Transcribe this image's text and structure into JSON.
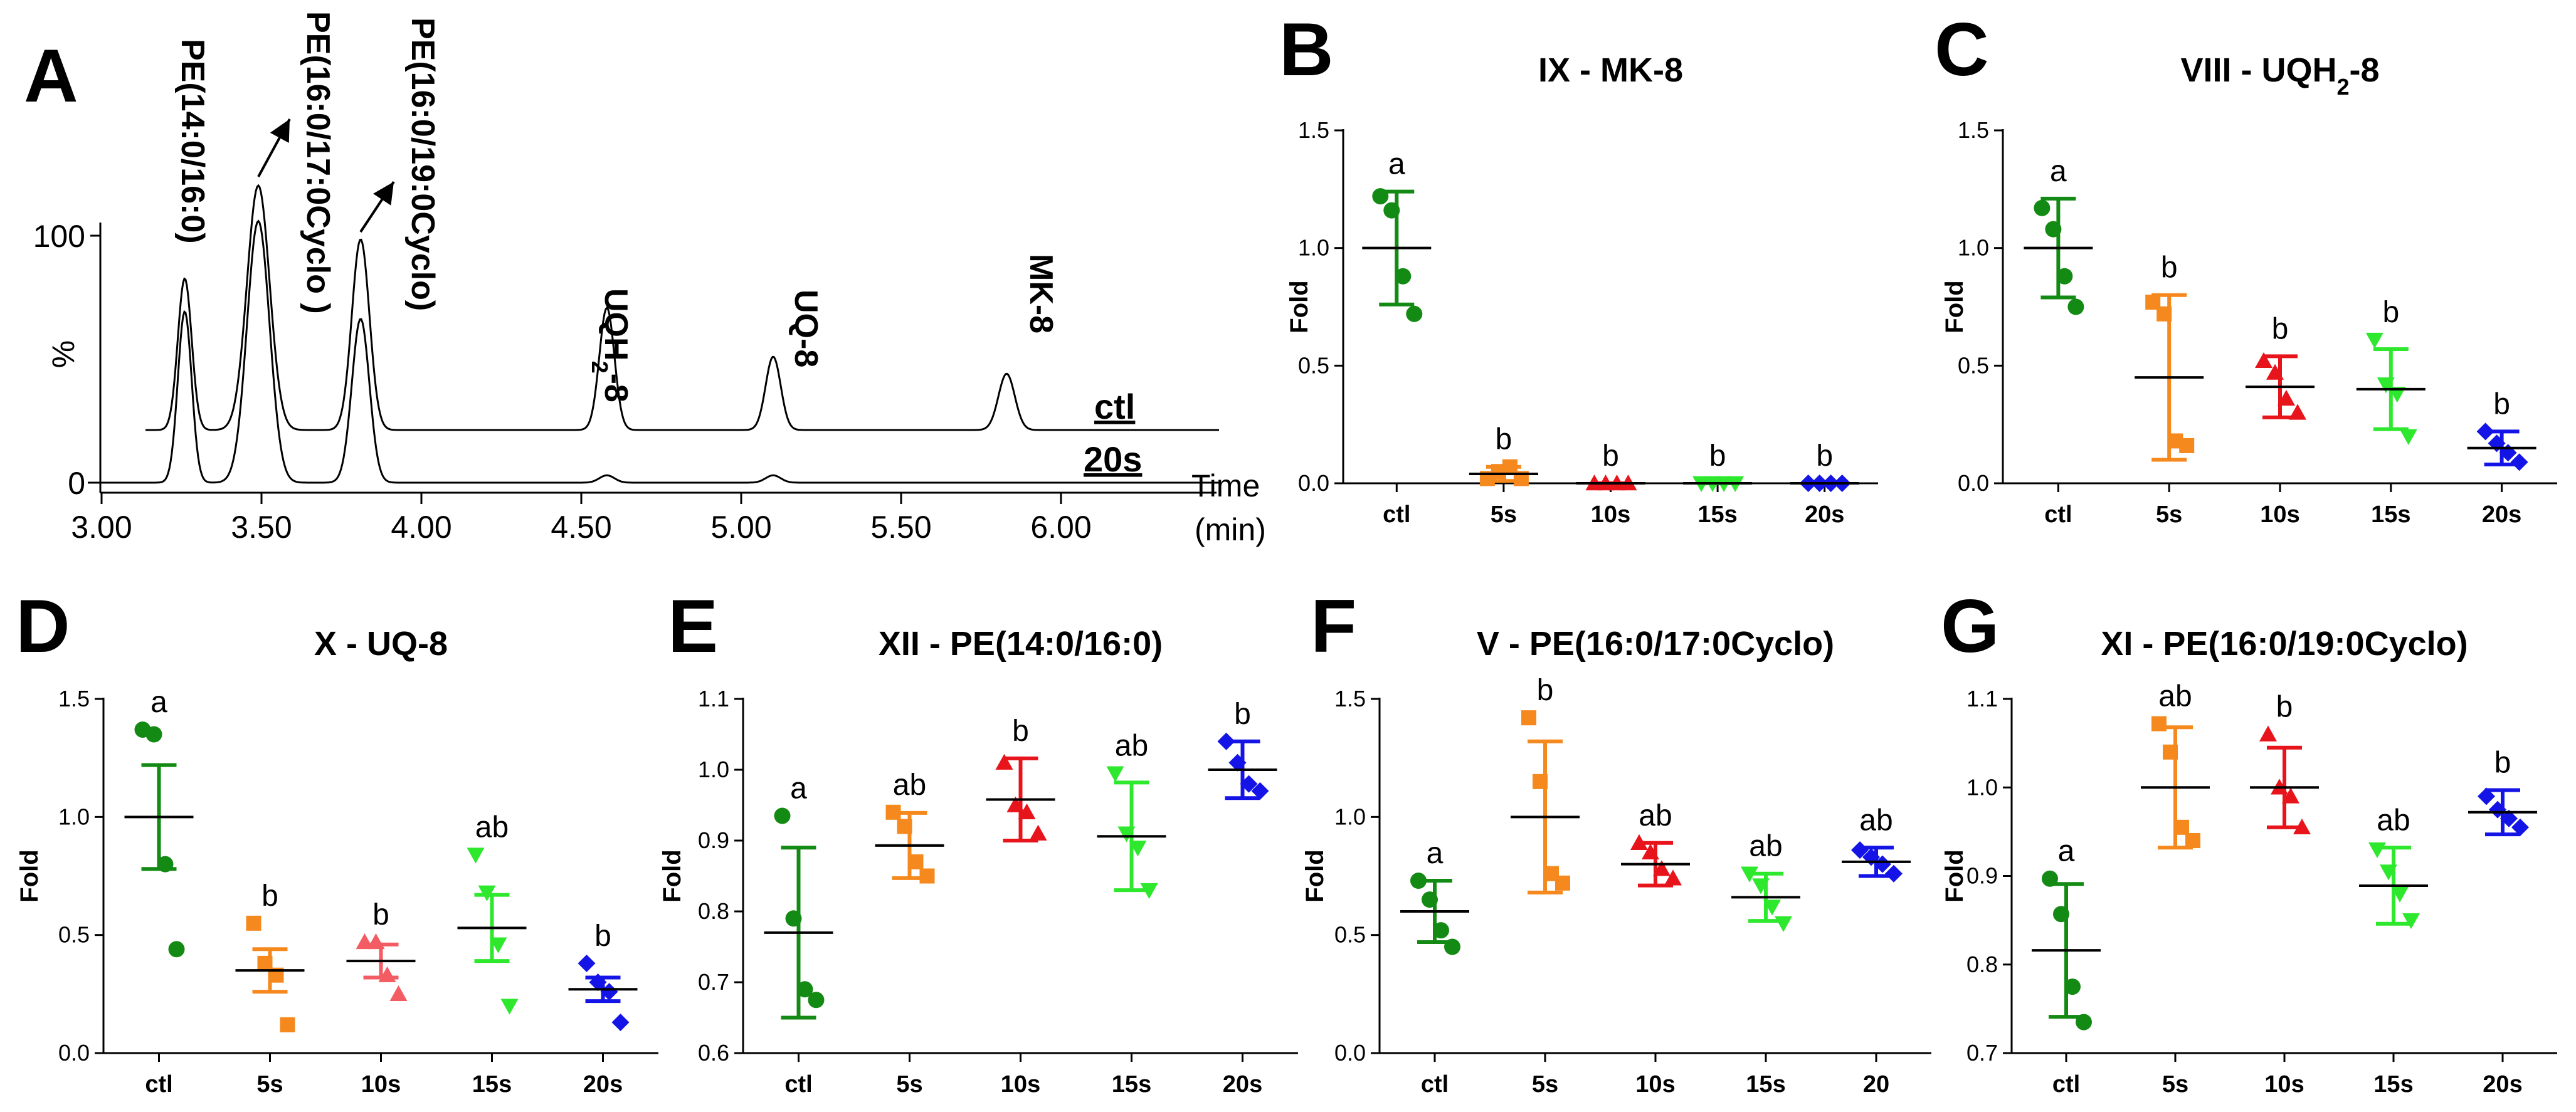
{
  "chart_data": [
    {
      "panel": "A",
      "type": "line",
      "title": "",
      "xlabel": "Time",
      "xlabel_unit": "(min)",
      "ylabel": "%",
      "xlim": [
        3.0,
        6.25
      ],
      "x_ticks": [
        "3.00",
        "3.50",
        "4.00",
        "4.50",
        "5.00",
        "5.50",
        "6.00"
      ],
      "y_ticks": [
        "0",
        "100"
      ],
      "peaks": [
        {
          "label": "PE(14:0/16:0)",
          "time": 3.26
        },
        {
          "label": "PE(16:0/17:0Cyclo )",
          "time": 3.49
        },
        {
          "label": "PE(16:0/19:0Cyclo)",
          "time": 3.81
        },
        {
          "label": "UQH2-8",
          "label_base": "UQH",
          "label_sub": "2",
          "label_tail": "-8",
          "time": 4.58
        },
        {
          "label": "UQ-8",
          "time": 5.1
        },
        {
          "label": "MK-8",
          "time": 5.83
        }
      ],
      "series": [
        {
          "name": "ctl",
          "baseline": 22,
          "heights": [
            62,
            100,
            78,
            50,
            30,
            23
          ]
        },
        {
          "name": "20s",
          "baseline": 0,
          "heights": [
            70,
            107,
            67,
            3,
            3,
            0
          ]
        }
      ]
    },
    {
      "panel": "B",
      "type": "scatter",
      "title": "IX - MK-8",
      "ylabel": "Fold",
      "ylim": [
        0,
        1.5
      ],
      "y_ticks": [
        "0.0",
        "0.5",
        "1.0",
        "1.5"
      ],
      "categories": [
        "ctl",
        "5s",
        "10s",
        "15s",
        "20s"
      ],
      "colors": [
        "#138a13",
        "#f5891e",
        "#e8141b",
        "#2ee82e",
        "#1414e6"
      ],
      "markers": [
        "circle",
        "square",
        "triangle",
        "triangle-down",
        "diamond"
      ],
      "points": [
        [
          1.22,
          1.16,
          0.88,
          0.72
        ],
        [
          0.02,
          0.05,
          0.07,
          0.02
        ],
        [
          0.0,
          0.0,
          0.0,
          0.0
        ],
        [
          0.0,
          0.0,
          0.0,
          0.0
        ],
        [
          0.0,
          0.0,
          0.0,
          0.0
        ]
      ],
      "mean": [
        1.0,
        0.04,
        0.0,
        0.0,
        0.0
      ],
      "err": [
        0.24,
        0.03,
        0.0,
        0.0,
        0.0
      ],
      "letters": [
        "a",
        "b",
        "b",
        "b",
        "b"
      ]
    },
    {
      "panel": "C",
      "type": "scatter",
      "title": "VIII - UQH2-8",
      "title_base": "VIII - UQH",
      "title_sub": "2",
      "title_tail": "-8",
      "ylabel": "Fold",
      "ylim": [
        0,
        1.5
      ],
      "y_ticks": [
        "0.0",
        "0.5",
        "1.0",
        "1.5"
      ],
      "categories": [
        "ctl",
        "5s",
        "10s",
        "15s",
        "20s"
      ],
      "colors": [
        "#138a13",
        "#f5891e",
        "#e8141b",
        "#2ee82e",
        "#1414e6"
      ],
      "markers": [
        "circle",
        "square",
        "triangle",
        "triangle-down",
        "diamond"
      ],
      "points": [
        [
          1.17,
          1.08,
          0.88,
          0.75
        ],
        [
          0.77,
          0.72,
          0.18,
          0.16
        ],
        [
          0.52,
          0.47,
          0.36,
          0.3
        ],
        [
          0.61,
          0.42,
          0.38,
          0.2
        ],
        [
          0.22,
          0.17,
          0.13,
          0.09
        ]
      ],
      "mean": [
        1.0,
        0.45,
        0.41,
        0.4,
        0.15
      ],
      "err": [
        0.21,
        0.35,
        0.13,
        0.17,
        0.07
      ],
      "letters": [
        "a",
        "b",
        "b",
        "b",
        "b"
      ]
    },
    {
      "panel": "D",
      "type": "scatter",
      "title": "X - UQ-8",
      "ylabel": "Fold",
      "ylim": [
        0,
        1.5
      ],
      "y_ticks": [
        "0.0",
        "0.5",
        "1.0",
        "1.5"
      ],
      "categories": [
        "ctl",
        "5s",
        "10s",
        "15s",
        "20s"
      ],
      "colors": [
        "#138a13",
        "#f5891e",
        "#f25c62",
        "#2ee82e",
        "#1414e6"
      ],
      "markers": [
        "circle",
        "square",
        "triangle",
        "triangle-down",
        "diamond"
      ],
      "points": [
        [
          1.37,
          1.35,
          0.8,
          0.44
        ],
        [
          0.55,
          0.38,
          0.33,
          0.12
        ],
        [
          0.47,
          0.47,
          0.33,
          0.25
        ],
        [
          0.84,
          0.68,
          0.46,
          0.2
        ],
        [
          0.38,
          0.3,
          0.26,
          0.13
        ]
      ],
      "mean": [
        1.0,
        0.35,
        0.39,
        0.53,
        0.27
      ],
      "err": [
        0.22,
        0.09,
        0.07,
        0.14,
        0.05
      ],
      "letters": [
        "a",
        "b",
        "b",
        "ab",
        "b"
      ]
    },
    {
      "panel": "E",
      "type": "scatter",
      "title": "XII - PE(14:0/16:0)",
      "ylabel": "Fold",
      "ylim": [
        0.6,
        1.1
      ],
      "y_ticks": [
        "0.6",
        "0.7",
        "0.8",
        "0.9",
        "1.0",
        "1.1"
      ],
      "categories": [
        "ctl",
        "5s",
        "10s",
        "15s",
        "20s"
      ],
      "colors": [
        "#138a13",
        "#f5891e",
        "#e8141b",
        "#2ee82e",
        "#1414e6"
      ],
      "markers": [
        "circle",
        "square",
        "triangle",
        "triangle-down",
        "diamond"
      ],
      "points": [
        [
          0.935,
          0.79,
          0.69,
          0.675
        ],
        [
          0.94,
          0.92,
          0.87,
          0.85
        ],
        [
          1.01,
          0.95,
          0.94,
          0.91
        ],
        [
          0.995,
          0.91,
          0.89,
          0.83
        ],
        [
          1.04,
          1.01,
          0.98,
          0.97
        ]
      ],
      "mean": [
        0.77,
        0.893,
        0.958,
        0.906,
        1.0
      ],
      "err": [
        0.12,
        0.046,
        0.058,
        0.076,
        0.04
      ],
      "letters": [
        "a",
        "ab",
        "b",
        "ab",
        "b"
      ]
    },
    {
      "panel": "F",
      "type": "scatter",
      "title": "V - PE(16:0/17:0Cyclo)",
      "ylabel": "Fold",
      "ylim": [
        0,
        1.5
      ],
      "y_ticks": [
        "0.0",
        "0.5",
        "1.0",
        "1.5"
      ],
      "categories": [
        "ctl",
        "5s",
        "10s",
        "15s",
        "20"
      ],
      "colors": [
        "#138a13",
        "#f5891e",
        "#e8141b",
        "#2ee82e",
        "#1414e6"
      ],
      "markers": [
        "circle",
        "square",
        "triangle",
        "triangle-down",
        "diamond"
      ],
      "points": [
        [
          0.73,
          0.65,
          0.52,
          0.45
        ],
        [
          1.42,
          1.15,
          0.76,
          0.72
        ],
        [
          0.89,
          0.85,
          0.78,
          0.74
        ],
        [
          0.76,
          0.71,
          0.62,
          0.55
        ],
        [
          0.86,
          0.83,
          0.8,
          0.76
        ]
      ],
      "mean": [
        0.6,
        1.0,
        0.8,
        0.66,
        0.81
      ],
      "err": [
        0.13,
        0.32,
        0.09,
        0.1,
        0.06
      ],
      "letters": [
        "a",
        "b",
        "ab",
        "ab",
        "ab"
      ]
    },
    {
      "panel": "G",
      "type": "scatter",
      "title": "XI - PE(16:0/19:0Cyclo)",
      "ylabel": "Fold",
      "ylim": [
        0.7,
        1.1
      ],
      "y_ticks": [
        "0.7",
        "0.8",
        "0.9",
        "1.0",
        "1.1"
      ],
      "categories": [
        "ctl",
        "5s",
        "10s",
        "15s",
        "20s"
      ],
      "colors": [
        "#138a13",
        "#f5891e",
        "#e8141b",
        "#2ee82e",
        "#1414e6"
      ],
      "markers": [
        "circle",
        "square",
        "triangle",
        "triangle-down",
        "diamond"
      ],
      "points": [
        [
          0.897,
          0.857,
          0.775,
          0.735
        ],
        [
          1.072,
          1.04,
          0.955,
          0.94
        ],
        [
          1.06,
          1.0,
          0.99,
          0.955
        ],
        [
          0.93,
          0.905,
          0.88,
          0.85
        ],
        [
          0.99,
          0.975,
          0.965,
          0.955
        ]
      ],
      "mean": [
        0.816,
        1.0,
        1.0,
        0.889,
        0.972
      ],
      "err": [
        0.075,
        0.068,
        0.045,
        0.043,
        0.025
      ],
      "letters": [
        "a",
        "ab",
        "b",
        "ab",
        "b"
      ]
    }
  ]
}
